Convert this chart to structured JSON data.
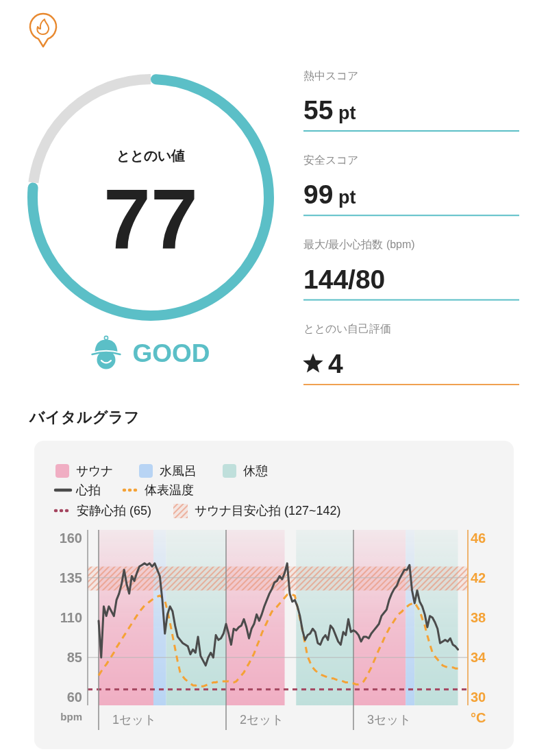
{
  "chart_data": [
    {
      "type": "donut",
      "title": "ととのい値",
      "categories": [
        null,
        null
      ],
      "values": [
        77,
        23
      ],
      "colors": [
        "#5bbfc7",
        "#dddddd"
      ],
      "value_labels": [
        "77",
        null
      ],
      "annotations": [
        "GOOD"
      ]
    },
    {
      "type": "other",
      "annotations": [
        "熱中スコア",
        "55 pt",
        "安全スコア",
        "99 pt",
        "最大/最小心拍数 (bpm)",
        "144/80",
        "ととのい自己評価",
        "4"
      ]
    },
    {
      "type": "line",
      "title": "バイタルグラフ",
      "ylabel": "bpm",
      "y2label": "°C",
      "annotations": [
        "サウナ",
        "水風呂",
        "休憩"
      ],
      "categories": [
        null,
        null,
        null,
        null,
        null,
        null,
        null,
        null,
        null,
        null,
        null,
        null,
        null,
        null,
        "1セット",
        null,
        null,
        null,
        null,
        null,
        null,
        null,
        null,
        null,
        null,
        null,
        null,
        null,
        null,
        null,
        null,
        null,
        null,
        null,
        null,
        null,
        null,
        null,
        null,
        null,
        null,
        null,
        null,
        null,
        null,
        null,
        null,
        null,
        null,
        null,
        null,
        null,
        null,
        null,
        null,
        null,
        null,
        null,
        null,
        null,
        null,
        null,
        null,
        null,
        "2セット",
        null,
        null,
        null,
        null,
        null,
        null,
        null,
        null,
        null,
        null,
        null,
        null,
        null,
        null,
        null,
        null,
        null,
        null,
        null,
        null,
        null,
        null,
        null,
        null,
        null,
        null,
        null,
        null,
        null,
        null,
        null,
        null,
        null,
        null,
        null,
        null,
        null,
        null,
        null,
        null,
        null,
        null,
        null,
        null,
        null,
        null,
        null,
        null,
        null,
        "3セット",
        null,
        null,
        null,
        null,
        null,
        null,
        null,
        null,
        null,
        null,
        null,
        null,
        null,
        null,
        null,
        null,
        null,
        null,
        null,
        null,
        null,
        null,
        null,
        null,
        null,
        null,
        null
      ],
      "ylim": [
        55,
        165
      ],
      "yticks": [
        60,
        85,
        110,
        135,
        160
      ],
      "y2lim": [
        29.2,
        46.8
      ],
      "y2ticks": [
        30,
        34,
        38,
        42,
        46
      ],
      "legend": "top",
      "series": [
        {
          "name": "心拍",
          "color": "#4b4b4b",
          "line_style": "solid",
          "values": [
            108,
            85,
            117,
            111,
            117,
            114,
            111,
            121,
            125,
            131,
            140,
            131,
            125,
            136,
            133,
            138,
            142,
            143,
            144,
            143,
            144,
            142,
            144,
            140,
            136,
            121,
            100,
            112,
            117,
            114,
            105,
            98,
            96,
            94,
            93,
            92,
            87,
            90,
            88,
            98,
            86,
            83,
            80,
            85,
            88,
            85,
            99,
            96,
            97,
            100,
            106,
            100,
            93,
            103,
            102,
            104,
            105,
            109,
            104,
            97,
            103,
            106,
            112,
            108,
            112,
            117,
            121,
            125,
            128,
            132,
            133,
            136,
            134,
            138,
            144,
            125,
            120,
            121,
            117,
            111,
            102,
            96,
            99,
            100,
            103,
            101,
            94,
            93,
            97,
            99,
            96,
            105,
            103,
            99,
            95,
            93,
            101,
            99,
            109,
            101,
            102,
            101,
            99,
            95,
            98,
            98,
            97,
            100,
            102,
            104,
            106,
            111,
            113,
            115,
            121,
            125,
            128,
            130,
            134,
            137,
            140,
            140,
            143,
            127,
            119,
            127,
            120,
            117,
            112,
            104,
            111,
            110,
            107,
            103,
            94,
            95,
            96,
            95,
            97,
            93,
            92,
            90
          ]
        },
        {
          "name": "体表温度",
          "color": "#f4a236",
          "axis": "y2",
          "line_style": "dashed",
          "values": [
            32.2,
            32.6,
            33.0,
            33.3,
            33.7,
            34.1,
            34.5,
            35.0,
            35.4,
            35.8,
            36.2,
            36.6,
            37.0,
            37.4,
            37.8,
            38.2,
            38.6,
            38.9,
            39.2,
            39.4,
            39.6,
            39.8,
            40.0,
            40.1,
            40.2,
            40.0,
            39.7,
            38.7,
            37.5,
            36.2,
            34.9,
            33.6,
            32.5,
            32.1,
            31.8,
            31.6,
            31.4,
            31.2,
            31.2,
            31.1,
            31.1,
            31.1,
            31.2,
            31.3,
            31.4,
            31.5,
            31.5,
            31.6,
            31.6,
            31.6,
            31.6,
            31.6,
            31.5,
            31.5,
            31.6,
            31.9,
            32.2,
            32.5,
            33.0,
            33.4,
            33.9,
            34.4,
            35.1,
            35.7,
            36.4,
            37.0,
            37.5,
            38.1,
            38.6,
            38.9,
            39.1,
            39.4,
            39.7,
            40.0,
            40.3,
            40.4,
            40.3,
            40.2,
            39.1,
            37.9,
            36.7,
            35.4,
            34.1,
            33.5,
            33.0,
            32.7,
            32.5,
            32.3,
            32.2,
            32.1,
            32.0,
            31.9,
            31.9,
            31.8,
            31.7,
            31.7,
            31.6,
            31.5,
            31.5,
            31.4,
            31.4,
            31.3,
            31.3,
            31.4,
            31.6,
            32.0,
            32.5,
            33.0,
            33.6,
            34.2,
            34.8,
            35.3,
            35.9,
            36.4,
            36.9,
            37.3,
            37.7,
            38.1,
            38.4,
            38.6,
            38.9,
            39.1,
            39.3,
            39.4,
            39.5,
            39.1,
            38.7,
            37.9,
            37.2,
            36.2,
            35.3,
            34.5,
            34.1,
            33.8,
            33.5,
            33.2,
            33.1,
            33.0,
            33.0,
            33.0,
            32.9,
            32.9
          ]
        }
      ],
      "ref_lines": [
        {
          "axis": "y",
          "value": 65,
          "label": "安静心拍 (65)",
          "color": "#a4455f",
          "line_style": "dashed"
        },
        {
          "axis": "y",
          "value": 135,
          "color": "#b8b8b8",
          "line_style": "solid"
        },
        {
          "axis": "y",
          "value": 85,
          "color": "#b8b8b8",
          "line_style": "solid"
        }
      ],
      "bands": [
        {
          "axis": "y",
          "from": 127,
          "to": 142,
          "label": "サウナ目安心拍 (127~142)",
          "color": "#e99478"
        }
      ]
    }
  ]
}
